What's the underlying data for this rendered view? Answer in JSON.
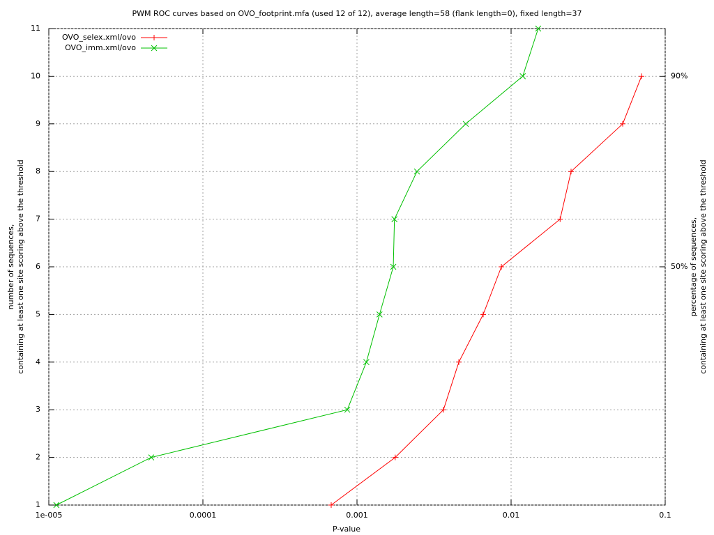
{
  "chart_data": {
    "type": "line",
    "title": "PWM ROC curves based on OVO_footprint.mfa (used 12 of 12), average length=58 (flank length=0), fixed length=37",
    "x_label": "P-value",
    "y_label": [
      "number of sequences,",
      "containing at least one site scoring above the threshold"
    ],
    "y2_label": [
      "percentage of sequences,",
      "containing at least one site scoring above the threshold"
    ],
    "xscale": "log",
    "xlim": [
      1e-05,
      0.1
    ],
    "xticks": [
      {
        "value": 1e-05,
        "label": "1e-005"
      },
      0.0001,
      0.001,
      0.01,
      0.1
    ],
    "ylim": [
      1,
      11
    ],
    "yticks": [
      1,
      2,
      3,
      4,
      5,
      6,
      7,
      8,
      9,
      10,
      11
    ],
    "y2lim": [
      0,
      100
    ],
    "y2ticks": [
      {
        "value": 90,
        "label": "90%"
      },
      {
        "value": 50,
        "label": "50%"
      }
    ],
    "grid": true,
    "legend": "top-left",
    "series": [
      {
        "name": "OVO_selex.xml/ovo",
        "color": "#ff0000",
        "marker": "plus",
        "x": [
          0.00068,
          0.00177,
          0.00364,
          0.00458,
          0.00659,
          0.00865,
          0.0208,
          0.0245,
          0.053,
          0.0702
        ],
        "values": [
          1,
          2,
          3,
          4,
          5,
          6,
          7,
          8,
          9,
          10
        ]
      },
      {
        "name": "OVO_imm.xml/ovo",
        "color": "#00c000",
        "marker": "cross",
        "x": [
          1.12e-05,
          4.62e-05,
          0.000865,
          0.00115,
          0.0014,
          0.00172,
          0.00175,
          0.00245,
          0.00508,
          0.0119,
          0.015
        ],
        "values": [
          1,
          2,
          3,
          4,
          5,
          6,
          7,
          8,
          9,
          10,
          11
        ]
      }
    ]
  }
}
